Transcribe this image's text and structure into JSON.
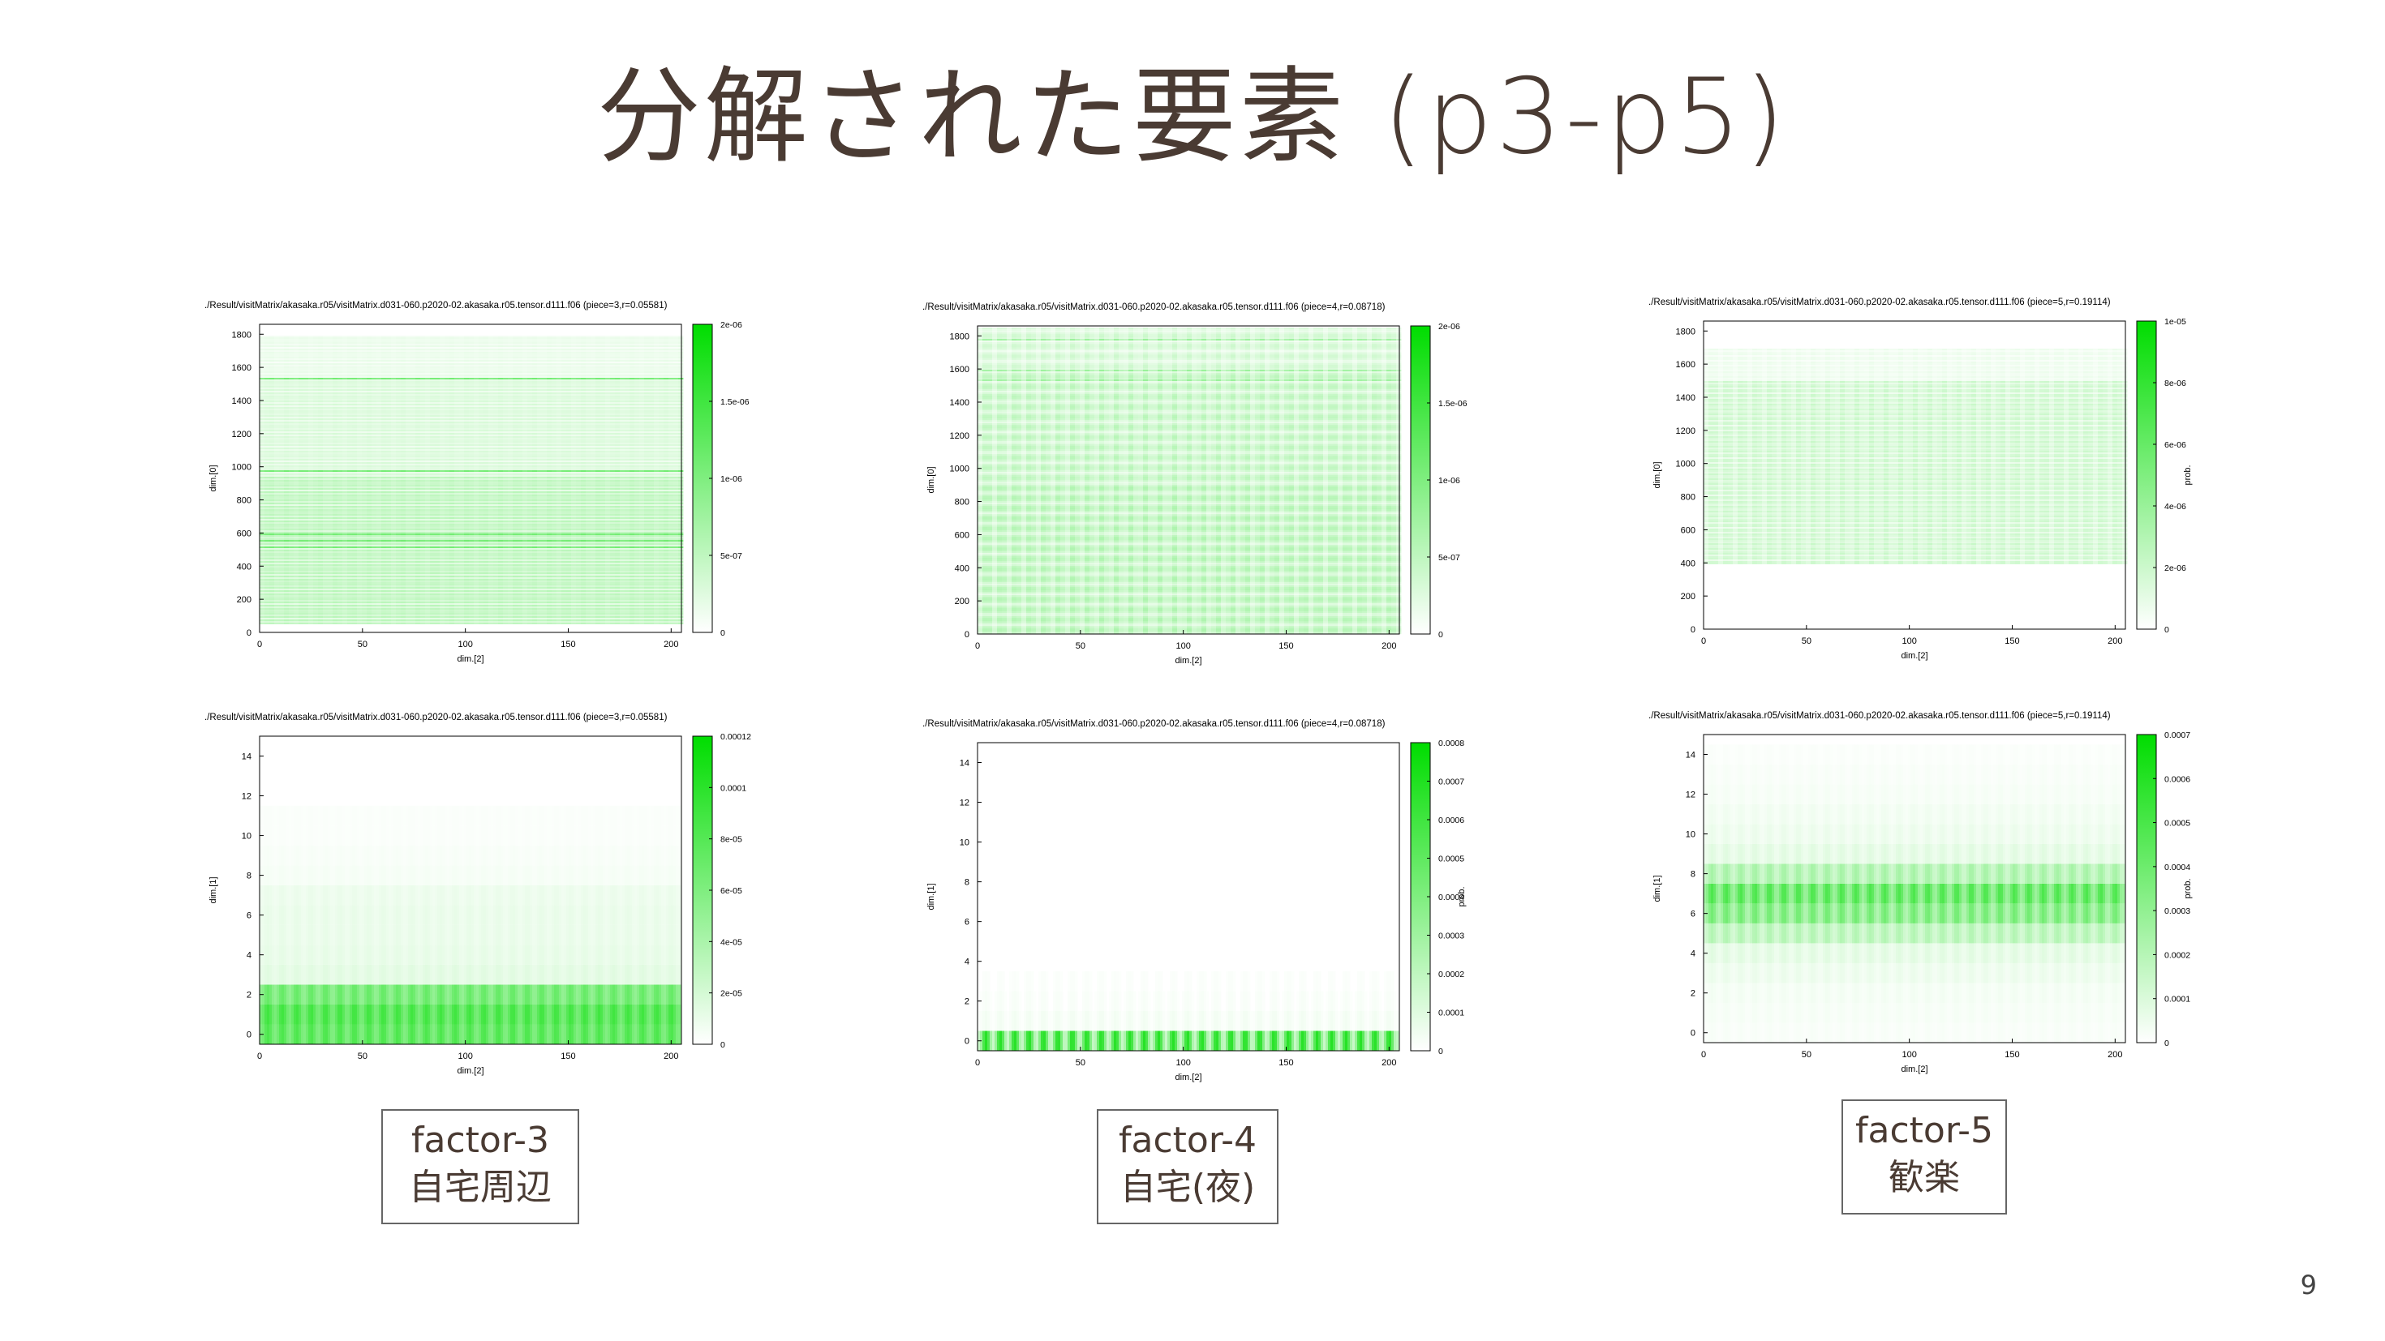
{
  "slide": {
    "title": "分解された要素 (p3-p5)",
    "page_number": "9"
  },
  "colors": {
    "low": "#ffffff",
    "high": "#00dd00"
  },
  "factors": [
    {
      "line1": "factor-3",
      "line2": "自宅周辺"
    },
    {
      "line1": "factor-4",
      "line2": "自宅(夜)"
    },
    {
      "line1": "factor-5",
      "line2": "歓楽"
    }
  ],
  "chart_data": [
    {
      "type": "heatmap",
      "title": "./Result/visitMatrix/akasaka.r05/visitMatrix.d031-060.p2020-02.akasaka.r05.tensor.d111.f06 (piece=3,r=0.05581)",
      "xlabel": "dim.[2]",
      "ylabel": "dim.[0]",
      "colorbar_label": "",
      "xlim": [
        0,
        205
      ],
      "ylim": [
        0,
        1860
      ],
      "xticks": [
        "0",
        "50",
        "100",
        "150",
        "200"
      ],
      "xtick_values": [
        0,
        50,
        100,
        150,
        200
      ],
      "yticks": [
        "0",
        "200",
        "400",
        "600",
        "800",
        "1000",
        "1200",
        "1400",
        "1600",
        "1800"
      ],
      "ytick_values": [
        0,
        200,
        400,
        600,
        800,
        1000,
        1200,
        1400,
        1600,
        1800
      ],
      "cbticks": [
        "0",
        "5e-07",
        "1e-06",
        "1.5e-06",
        "2e-06"
      ],
      "cbtick_values": [
        0,
        5e-07,
        1e-06,
        1.5e-06,
        2e-06
      ],
      "cbmax": 2e-06,
      "pattern": "rows",
      "bands": [
        {
          "v0": 50,
          "v1": 950,
          "intensity": 0.28
        },
        {
          "v0": 950,
          "v1": 1550,
          "intensity": 0.16
        },
        {
          "v0": 1550,
          "v1": 1800,
          "intensity": 0.09
        }
      ],
      "strong_rows": [
        520,
        560,
        600,
        980,
        1540
      ],
      "strong_intensity": 0.55,
      "row_period": 26,
      "column_period": 8,
      "column_contrast": 0.15
    },
    {
      "type": "heatmap",
      "title": "./Result/visitMatrix/akasaka.r05/visitMatrix.d031-060.p2020-02.akasaka.r05.tensor.d111.f06 (piece=4,r=0.08718)",
      "xlabel": "dim.[2]",
      "ylabel": "dim.[0]",
      "colorbar_label": "",
      "xlim": [
        0,
        205
      ],
      "ylim": [
        0,
        1860
      ],
      "xticks": [
        "0",
        "50",
        "100",
        "150",
        "200"
      ],
      "xtick_values": [
        0,
        50,
        100,
        150,
        200
      ],
      "yticks": [
        "0",
        "200",
        "400",
        "600",
        "800",
        "1000",
        "1200",
        "1400",
        "1600",
        "1800"
      ],
      "ytick_values": [
        0,
        200,
        400,
        600,
        800,
        1000,
        1200,
        1400,
        1600,
        1800
      ],
      "cbticks": [
        "0",
        "5e-07",
        "1e-06",
        "1.5e-06",
        "2e-06"
      ],
      "cbtick_values": [
        0,
        5e-07,
        1e-06,
        1.5e-06,
        2e-06
      ],
      "cbmax": 2e-06,
      "pattern": "rows",
      "bands": [
        {
          "v0": 0,
          "v1": 900,
          "intensity": 0.32
        },
        {
          "v0": 900,
          "v1": 1600,
          "intensity": 0.28
        },
        {
          "v0": 1600,
          "v1": 1860,
          "intensity": 0.2
        }
      ],
      "strong_rows": [
        1540,
        1600,
        1780
      ],
      "strong_intensity": 0.4,
      "row_period": 22,
      "column_period": 7,
      "column_contrast": 0.45
    },
    {
      "type": "heatmap",
      "title": "./Result/visitMatrix/akasaka.r05/visitMatrix.d031-060.p2020-02.akasaka.r05.tensor.d111.f06 (piece=5,r=0.19114)",
      "xlabel": "dim.[2]",
      "ylabel": "dim.[0]",
      "colorbar_label": "prob.",
      "xlim": [
        0,
        205
      ],
      "ylim": [
        0,
        1860
      ],
      "xticks": [
        "0",
        "50",
        "100",
        "150",
        "200"
      ],
      "xtick_values": [
        0,
        50,
        100,
        150,
        200
      ],
      "yticks": [
        "0",
        "200",
        "400",
        "600",
        "800",
        "1000",
        "1200",
        "1400",
        "1600",
        "1800"
      ],
      "ytick_values": [
        0,
        200,
        400,
        600,
        800,
        1000,
        1200,
        1400,
        1600,
        1800
      ],
      "cbticks": [
        "0",
        "2e-06",
        "4e-06",
        "6e-06",
        "8e-06",
        "1e-05"
      ],
      "cbtick_values": [
        0,
        2e-06,
        4e-06,
        6e-06,
        8e-06,
        1e-05
      ],
      "cbmax": 1e-05,
      "pattern": "rows",
      "bands": [
        {
          "v0": 400,
          "v1": 1500,
          "intensity": 0.22
        },
        {
          "v0": 1500,
          "v1": 1700,
          "intensity": 0.08
        }
      ],
      "strong_rows": [],
      "strong_intensity": 0.3,
      "row_period": 30,
      "column_period": 7,
      "column_contrast": 0.4
    },
    {
      "type": "heatmap",
      "title": "./Result/visitMatrix/akasaka.r05/visitMatrix.d031-060.p2020-02.akasaka.r05.tensor.d111.f06 (piece=3,r=0.05581)",
      "xlabel": "dim.[2]",
      "ylabel": "dim.[1]",
      "colorbar_label": "",
      "xlim": [
        0,
        205
      ],
      "ylim": [
        -0.5,
        15
      ],
      "xticks": [
        "0",
        "50",
        "100",
        "150",
        "200"
      ],
      "xtick_values": [
        0,
        50,
        100,
        150,
        200
      ],
      "yticks": [
        "0",
        "2",
        "4",
        "6",
        "8",
        "10",
        "12",
        "14"
      ],
      "ytick_values": [
        0,
        2,
        4,
        6,
        8,
        10,
        12,
        14
      ],
      "cbticks": [
        "0",
        "2e-05",
        "4e-05",
        "6e-05",
        "8e-05",
        "0.0001",
        "0.00012"
      ],
      "cbtick_values": [
        0,
        2e-05,
        4e-05,
        6e-05,
        8e-05,
        0.0001,
        0.00012
      ],
      "cbmax": 0.00012,
      "pattern": "profile",
      "profile": [
        0.7,
        0.75,
        0.6,
        0.12,
        0.1,
        0.09,
        0.09,
        0.08,
        0.04,
        0.03,
        0.02,
        0.02,
        0.01,
        0.01,
        0.01
      ],
      "column_period": 7,
      "column_contrast": 0.3
    },
    {
      "type": "heatmap",
      "title": "./Result/visitMatrix/akasaka.r05/visitMatrix.d031-060.p2020-02.akasaka.r05.tensor.d111.f06 (piece=4,r=0.08718)",
      "xlabel": "dim.[2]",
      "ylabel": "dim.[1]",
      "colorbar_label": "prob.",
      "xlim": [
        0,
        205
      ],
      "ylim": [
        -0.5,
        15
      ],
      "xticks": [
        "0",
        "50",
        "100",
        "150",
        "200"
      ],
      "xtick_values": [
        0,
        50,
        100,
        150,
        200
      ],
      "yticks": [
        "0",
        "2",
        "4",
        "6",
        "8",
        "10",
        "12",
        "14"
      ],
      "ytick_values": [
        0,
        2,
        4,
        6,
        8,
        10,
        12,
        14
      ],
      "cbticks": [
        "0",
        "0.0001",
        "0.0002",
        "0.0003",
        "0.0004",
        "0.0005",
        "0.0006",
        "0.0007",
        "0.0008"
      ],
      "cbtick_values": [
        0,
        0.0001,
        0.0002,
        0.0003,
        0.0004,
        0.0005,
        0.0006,
        0.0007,
        0.0008
      ],
      "cbmax": 0.0008,
      "pattern": "profile",
      "profile": [
        0.85,
        0.05,
        0.03,
        0.02,
        0.01,
        0.01,
        0.01,
        0.01,
        0.0,
        0.0,
        0.0,
        0.0,
        0.0,
        0.0,
        0.0
      ],
      "column_period": 7,
      "column_contrast": 0.75
    },
    {
      "type": "heatmap",
      "title": "./Result/visitMatrix/akasaka.r05/visitMatrix.d031-060.p2020-02.akasaka.r05.tensor.d111.f06 (piece=5,r=0.19114)",
      "xlabel": "dim.[2]",
      "ylabel": "dim.[1]",
      "colorbar_label": "prob.",
      "xlim": [
        0,
        205
      ],
      "ylim": [
        -0.5,
        15
      ],
      "xticks": [
        "0",
        "50",
        "100",
        "150",
        "200"
      ],
      "xtick_values": [
        0,
        50,
        100,
        150,
        200
      ],
      "yticks": [
        "0",
        "2",
        "4",
        "6",
        "8",
        "10",
        "12",
        "14"
      ],
      "ytick_values": [
        0,
        2,
        4,
        6,
        8,
        10,
        12,
        14
      ],
      "cbticks": [
        "0",
        "0.0001",
        "0.0002",
        "0.0003",
        "0.0004",
        "0.0005",
        "0.0006",
        "0.0007"
      ],
      "cbtick_values": [
        0,
        0.0001,
        0.0002,
        0.0003,
        0.0004,
        0.0005,
        0.0006,
        0.0007
      ],
      "cbmax": 0.0007,
      "pattern": "profile",
      "profile": [
        0.03,
        0.04,
        0.05,
        0.08,
        0.12,
        0.3,
        0.55,
        0.7,
        0.35,
        0.12,
        0.08,
        0.06,
        0.04,
        0.03,
        0.02
      ],
      "column_period": 7,
      "column_contrast": 0.45
    }
  ]
}
